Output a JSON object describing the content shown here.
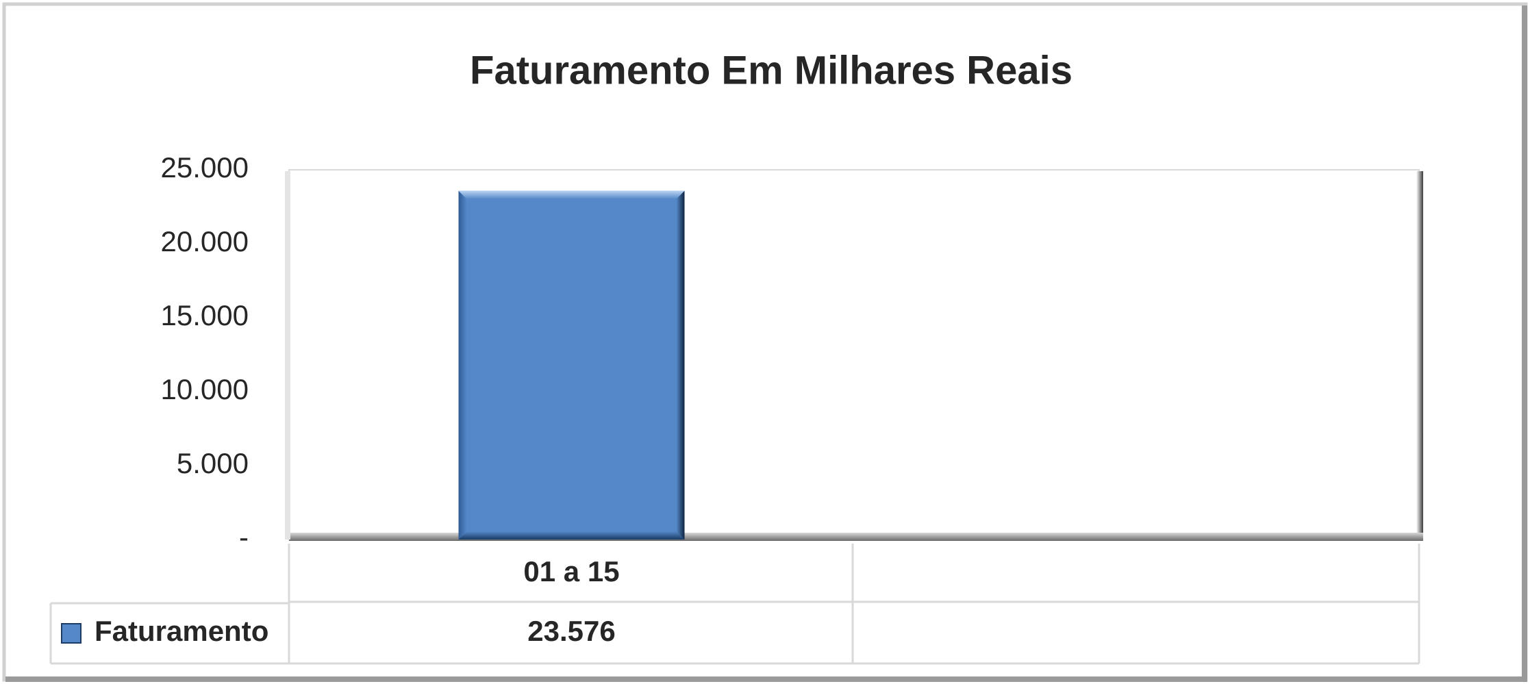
{
  "chart_data": {
    "type": "bar",
    "title": "Faturamento Em Milhares Reais",
    "categories": [
      "01 a 15",
      null
    ],
    "series": [
      {
        "name": "Faturamento",
        "color": "#5588c8",
        "values": [
          23576,
          null
        ],
        "value_labels": [
          "23.576",
          null
        ]
      }
    ],
    "ylim": [
      0,
      25000
    ],
    "yticks": [
      {
        "value": 0,
        "label": "-"
      },
      {
        "value": 5000,
        "label": "5.000"
      },
      {
        "value": 10000,
        "label": "10.000"
      },
      {
        "value": 15000,
        "label": "15.000"
      },
      {
        "value": 20000,
        "label": "20.000"
      },
      {
        "value": 25000,
        "label": "25.000"
      }
    ],
    "grid": false,
    "data_table": true
  }
}
